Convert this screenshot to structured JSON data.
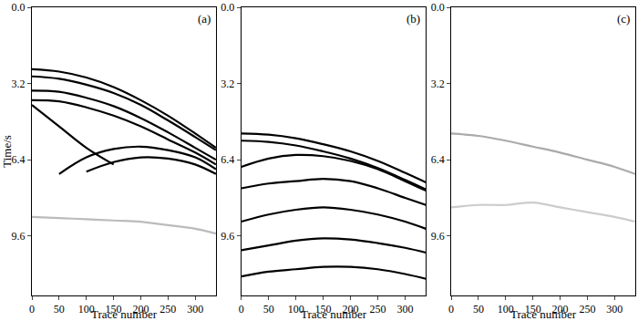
{
  "chart_data": [
    {
      "type": "line",
      "annotations": [
        "(a)"
      ],
      "x_label": "Trace number",
      "y_label": "Time/s",
      "x": [
        0,
        50,
        100,
        150,
        200,
        250,
        300,
        338
      ],
      "xlim": [
        0,
        338
      ],
      "xticks": [
        0,
        50,
        100,
        150,
        200,
        250,
        300
      ],
      "ylim": [
        0,
        12.1
      ],
      "yticks": [
        {
          "value": 0,
          "label": "0.0"
        },
        3.2,
        6.4,
        9.6
      ],
      "series": [
        {
          "color": "#000000",
          "values": [
            2.6,
            2.7,
            2.95,
            3.35,
            3.9,
            4.55,
            5.3,
            5.9
          ]
        },
        {
          "color": "#000000",
          "values": [
            2.9,
            3.0,
            3.25,
            3.6,
            4.1,
            4.75,
            5.45,
            6.0
          ]
        },
        {
          "color": "#000000",
          "values": [
            3.5,
            3.55,
            3.8,
            4.15,
            4.65,
            5.25,
            5.9,
            6.4
          ]
        },
        {
          "color": "#000000",
          "values": [
            3.9,
            3.95,
            4.2,
            4.55,
            5.0,
            5.55,
            6.1,
            6.6
          ]
        },
        {
          "color": "#000000",
          "values": [
            4.1,
            5.0,
            5.9,
            6.6,
            null,
            null,
            null,
            null
          ]
        },
        {
          "color": "#000000",
          "values": [
            null,
            7.0,
            6.3,
            5.95,
            5.85,
            6.0,
            6.3,
            6.8
          ]
        },
        {
          "color": "#000000",
          "values": [
            null,
            null,
            6.9,
            6.5,
            6.3,
            6.35,
            6.6,
            7.0
          ]
        },
        {
          "color": "#bbbbbb",
          "values": [
            8.8,
            8.85,
            8.9,
            8.95,
            9.0,
            9.15,
            9.3,
            9.5
          ]
        }
      ]
    },
    {
      "type": "line",
      "annotations": [
        "(b)"
      ],
      "x_label": "Trace number",
      "x": [
        0,
        50,
        100,
        150,
        200,
        250,
        300,
        338
      ],
      "xlim": [
        0,
        338
      ],
      "xticks": [
        0,
        50,
        100,
        150,
        200,
        250,
        300
      ],
      "ylim": [
        0,
        12.1
      ],
      "yticks": [
        {
          "value": 0,
          "label": "0.0"
        },
        3.2,
        6.4,
        9.6
      ],
      "series": [
        {
          "color": "#000000",
          "values": [
            5.3,
            5.35,
            5.5,
            5.75,
            6.05,
            6.45,
            6.95,
            7.35
          ]
        },
        {
          "color": "#000000",
          "values": [
            5.6,
            5.65,
            5.8,
            6.05,
            6.35,
            6.75,
            7.25,
            7.65
          ]
        },
        {
          "color": "#000000",
          "values": [
            6.7,
            6.35,
            6.2,
            6.25,
            6.45,
            6.8,
            7.3,
            7.7
          ]
        },
        {
          "color": "#000000",
          "values": [
            7.6,
            7.4,
            7.3,
            7.2,
            7.3,
            7.6,
            8.0,
            8.3
          ]
        },
        {
          "color": "#000000",
          "values": [
            9.0,
            8.7,
            8.5,
            8.4,
            8.5,
            8.7,
            9.0,
            9.3
          ]
        },
        {
          "color": "#000000",
          "values": [
            10.2,
            10.0,
            9.8,
            9.7,
            9.75,
            9.9,
            10.1,
            10.3
          ]
        },
        {
          "color": "#000000",
          "values": [
            11.3,
            11.1,
            11.0,
            10.9,
            10.9,
            11.0,
            11.2,
            11.4
          ]
        }
      ]
    },
    {
      "type": "line",
      "annotations": [
        "(c)"
      ],
      "x_label": "Trace number",
      "x": [
        0,
        50,
        100,
        150,
        200,
        250,
        300,
        338
      ],
      "xlim": [
        0,
        338
      ],
      "xticks": [
        0,
        50,
        100,
        150,
        200,
        250,
        300
      ],
      "ylim": [
        0,
        12.1
      ],
      "yticks": [
        {
          "value": 0,
          "label": "0.0"
        },
        3.2,
        6.4,
        9.6
      ],
      "series": [
        {
          "color": "#aaaaaa",
          "values": [
            5.3,
            5.4,
            5.6,
            5.85,
            6.1,
            6.4,
            6.7,
            7.0
          ]
        },
        {
          "color": "#cccccc",
          "values": [
            8.4,
            8.3,
            8.3,
            8.2,
            8.4,
            8.6,
            8.8,
            9.0
          ]
        }
      ]
    }
  ]
}
